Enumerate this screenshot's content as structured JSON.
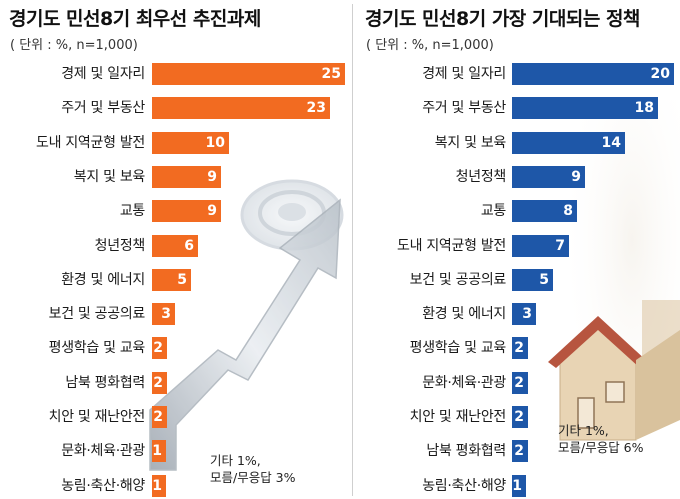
{
  "chart_data": [
    {
      "type": "bar",
      "orientation": "horizontal",
      "title": "경기도 민선8기 최우선 추진과제",
      "subtitle": "( 단위 : %, n=1,000)",
      "categories": [
        "경제 및 일자리",
        "주거 및 부동산",
        "도내 지역균형 발전",
        "복지 및 보육",
        "교통",
        "청년정책",
        "환경 및 에너지",
        "보건 및 공공의료",
        "평생학습 및 교육",
        "남북 평화협력",
        "치안 및 재난안전",
        "문화·체육·관광",
        "농림·축산·해양"
      ],
      "values": [
        25,
        23,
        10,
        9,
        9,
        6,
        5,
        3,
        2,
        2,
        2,
        1,
        1
      ],
      "note": [
        "기타 1%,",
        "모름/무응답 3%"
      ],
      "bar_color": "#F26B21",
      "xlim": [
        0,
        25
      ]
    },
    {
      "type": "bar",
      "orientation": "horizontal",
      "title": "경기도 민선8기 가장 기대되는 정책",
      "subtitle": "( 단위 : %, n=1,000)",
      "categories": [
        "경제 및 일자리",
        "주거 및 부동산",
        "복지 및 보육",
        "청년정책",
        "교통",
        "도내 지역균형 발전",
        "보건 및 공공의료",
        "환경 및 에너지",
        "평생학습 및 교육",
        "문화·체육·관광",
        "치안 및 재난안전",
        "남북 평화협력",
        "농림·축산·해양"
      ],
      "values": [
        20,
        18,
        14,
        9,
        8,
        7,
        5,
        3,
        2,
        2,
        2,
        2,
        1
      ],
      "note": [
        "기타 1%,",
        "모름/무응답 6%"
      ],
      "bar_color": "#1E57A8",
      "xlim": [
        0,
        20
      ]
    }
  ]
}
